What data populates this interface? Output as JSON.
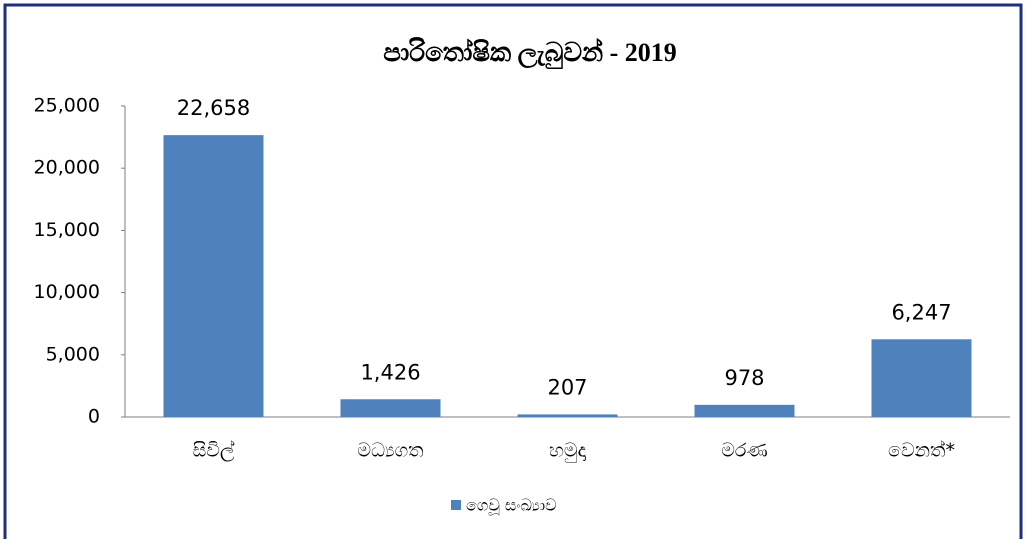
{
  "chart_data": {
    "type": "bar",
    "title": "පාරිතෝෂික ලැබුවන් - 2019",
    "categories": [
      "සිවිල්",
      "මධ්‍යගත",
      "හමුදා",
      "මරණ",
      "වෙනත්*"
    ],
    "series": [
      {
        "name": "ගෙවූ සංඛ්‍යාව",
        "color": "#4f81bd",
        "values": [
          22658,
          1426,
          207,
          978,
          6247
        ],
        "value_labels": [
          "22,658",
          "1,426",
          "207",
          "978",
          "6,247"
        ]
      }
    ],
    "ylim": [
      0,
      25000
    ],
    "yticks": [
      0,
      {
        "value": 5000,
        "label": "5,000"
      },
      {
        "value": 10000,
        "label": "10,000"
      },
      {
        "value": 15000,
        "label": "15,000"
      },
      {
        "value": 20000,
        "label": "20,000"
      },
      {
        "value": 25000,
        "label": "25,000"
      }
    ],
    "legend": "bottom"
  }
}
